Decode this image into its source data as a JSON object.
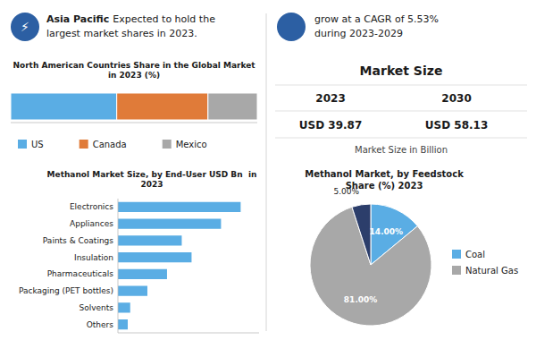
{
  "chart_data": [
    {
      "type": "text",
      "annotations": [
        "⚡",
        "Asia Pacific",
        "Expected to hold the",
        "largest market shares in 2023.",
        "grow at a CAGR of 5.53%\nduring 2023-2029"
      ]
    },
    {
      "type": "bar",
      "orientation": "horizontal",
      "stacked": true,
      "title": "North American Countries Share in the Global Market\nin 2023 (%)",
      "categories": [
        null
      ],
      "series": [
        {
          "name": "US",
          "color": "#5aade4",
          "values": [
            0.43
          ]
        },
        {
          "name": "Canada",
          "color": "#e07b39",
          "values": [
            0.37
          ]
        },
        {
          "name": "Mexico",
          "color": "#a8a8a8",
          "values": [
            0.2
          ]
        }
      ],
      "xlim": [
        0,
        1
      ],
      "tick_labels": false,
      "legend": "bottom"
    },
    {
      "type": "text",
      "title": "Market Size",
      "annotations": [
        "2023",
        "2030",
        "USD 39.87",
        "USD 58.13",
        "Market Size in Billion"
      ]
    },
    {
      "type": "bar",
      "orientation": "horizontal",
      "title": "Methanol Market Size, by End-User USD Bn  in\n2023",
      "categories": [
        "Others",
        "Solvents",
        "Packaging (PET bottles)",
        "Pharmaceuticals",
        "Insulation",
        "Paints & Coatings",
        "Appliances",
        "Electronics"
      ],
      "values": [
        0.4,
        0.5,
        1.2,
        2.0,
        3.0,
        2.6,
        4.2,
        5.0
      ],
      "color": "#5aade4",
      "xlim": [
        0,
        5.75
      ],
      "tick_labels": "y"
    },
    {
      "type": "pie",
      "title": "Methanol Market, by Feedstock\nShare (%) 2023",
      "categories": [
        "Coal",
        "Natural Gas",
        null
      ],
      "values": [
        14,
        81,
        5
      ],
      "value_labels": [
        "14.00%",
        "81.00%",
        "5.00%"
      ],
      "colors": [
        "#5aade4",
        "#a8a8a8",
        "#2c3e6b"
      ],
      "data_labels": true,
      "legend": "right"
    }
  ]
}
